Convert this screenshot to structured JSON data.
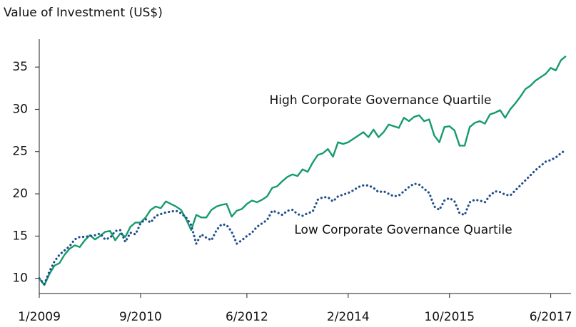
{
  "chart_data": {
    "type": "line",
    "y_label": "Value of Investment (US$)",
    "x": [
      "2009-01",
      "2009-02",
      "2009-03",
      "2009-04",
      "2009-05",
      "2009-06",
      "2009-07",
      "2009-08",
      "2009-09",
      "2009-10",
      "2009-11",
      "2009-12",
      "2010-01",
      "2010-02",
      "2010-03",
      "2010-04",
      "2010-05",
      "2010-06",
      "2010-07",
      "2010-08",
      "2010-09",
      "2010-10",
      "2010-11",
      "2010-12",
      "2011-01",
      "2011-02",
      "2011-03",
      "2011-04",
      "2011-05",
      "2011-06",
      "2011-07",
      "2011-08",
      "2011-09",
      "2011-10",
      "2011-11",
      "2011-12",
      "2012-01",
      "2012-02",
      "2012-03",
      "2012-04",
      "2012-05",
      "2012-06",
      "2012-07",
      "2012-08",
      "2012-09",
      "2012-10",
      "2012-11",
      "2012-12",
      "2013-01",
      "2013-02",
      "2013-03",
      "2013-04",
      "2013-05",
      "2013-06",
      "2013-07",
      "2013-08",
      "2013-09",
      "2013-10",
      "2013-11",
      "2013-12",
      "2014-01",
      "2014-02",
      "2014-03",
      "2014-04",
      "2014-05",
      "2014-06",
      "2014-07",
      "2014-08",
      "2014-09",
      "2014-10",
      "2014-11",
      "2014-12",
      "2015-01",
      "2015-02",
      "2015-03",
      "2015-04",
      "2015-05",
      "2015-06",
      "2015-07",
      "2015-08",
      "2015-09",
      "2015-10",
      "2015-11",
      "2015-12",
      "2016-01",
      "2016-02",
      "2016-03",
      "2016-04",
      "2016-05",
      "2016-06",
      "2016-07",
      "2016-08",
      "2016-09",
      "2016-10",
      "2016-11",
      "2016-12",
      "2017-01",
      "2017-02",
      "2017-03",
      "2017-04",
      "2017-05",
      "2017-06",
      "2017-07",
      "2017-08",
      "2017-09"
    ],
    "series": [
      {
        "name": "High Corporate Governance Quartile",
        "color": "#179b6b",
        "dash": "solid",
        "values": [
          10,
          9.2,
          10.5,
          11.5,
          11.8,
          12.8,
          13.5,
          13.9,
          13.7,
          14.5,
          15.1,
          14.6,
          15,
          15.5,
          15.6,
          14.5,
          15.3,
          14.9,
          16.1,
          16.6,
          16.6,
          17.2,
          18.1,
          18.5,
          18.3,
          19.1,
          18.8,
          18.5,
          18.1,
          17,
          15.7,
          17.5,
          17.2,
          17.2,
          18.1,
          18.5,
          18.7,
          18.8,
          17.3,
          18,
          18.2,
          18.8,
          19.2,
          19,
          19.3,
          19.7,
          20.7,
          20.9,
          21.5,
          22,
          22.3,
          22.1,
          22.9,
          22.6,
          23.7,
          24.6,
          24.8,
          25.3,
          24.4,
          26.1,
          25.9,
          26.1,
          26.5,
          26.9,
          27.3,
          26.7,
          27.6,
          26.7,
          27.3,
          28.2,
          28,
          27.8,
          29,
          28.6,
          29.1,
          29.3,
          28.6,
          28.8,
          26.9,
          26.1,
          27.9,
          28,
          27.5,
          25.7,
          25.7,
          27.9,
          28.4,
          28.6,
          28.3,
          29.4,
          29.6,
          29.9,
          29,
          30,
          30.7,
          31.5,
          32.4,
          32.8,
          33.4,
          33.8,
          34.2,
          34.9,
          34.6,
          35.8,
          36.3
        ]
      },
      {
        "name": "Low Corporate Governance Quartile",
        "color": "#1f4f8f",
        "dash": "dotted",
        "values": [
          10,
          9.3,
          10.8,
          12,
          12.8,
          13.3,
          13.8,
          14.6,
          14.9,
          14.9,
          15,
          15.1,
          15.3,
          14.6,
          14.8,
          15.6,
          15.7,
          14.3,
          15.4,
          15.2,
          16.5,
          17,
          16.6,
          17.4,
          17.6,
          17.8,
          17.9,
          18,
          17.7,
          17.2,
          16.3,
          14.1,
          15.2,
          14.8,
          14.5,
          15.7,
          16.4,
          16.3,
          15.5,
          14.1,
          14.5,
          15,
          15.4,
          16.1,
          16.5,
          16.9,
          18,
          17.8,
          17.5,
          18,
          18.1,
          17.6,
          17.4,
          17.7,
          17.9,
          19.3,
          19.6,
          19.6,
          19.1,
          19.7,
          19.9,
          20.1,
          20.4,
          20.8,
          21,
          21,
          20.7,
          20.2,
          20.3,
          20,
          19.7,
          19.8,
          20.3,
          20.8,
          21.2,
          21.1,
          20.6,
          20.1,
          18.5,
          18.1,
          19.2,
          19.5,
          19.1,
          17.7,
          17.5,
          19,
          19.3,
          19.2,
          19,
          19.8,
          20.3,
          20.2,
          19.9,
          19.8,
          20.4,
          21,
          21.6,
          22.2,
          22.8,
          23.3,
          23.8,
          24,
          24.3,
          24.8,
          25.2
        ]
      }
    ],
    "xlim": [
      "2009-01",
      "2017-10"
    ],
    "xticks": [
      {
        "value": "2009-01",
        "label": "1/2009"
      },
      {
        "value": "2010-09",
        "label": "9/2010"
      },
      {
        "value": "2012-06",
        "label": "6/2012"
      },
      {
        "value": "2014-02",
        "label": "2/2014"
      },
      {
        "value": "2015-10",
        "label": "10/2015"
      },
      {
        "value": "2017-06",
        "label": "6/2017"
      }
    ],
    "ylim": [
      8.2,
      38.3
    ],
    "yticks": [
      10,
      15,
      20,
      25,
      30,
      35
    ],
    "grid": false
  }
}
